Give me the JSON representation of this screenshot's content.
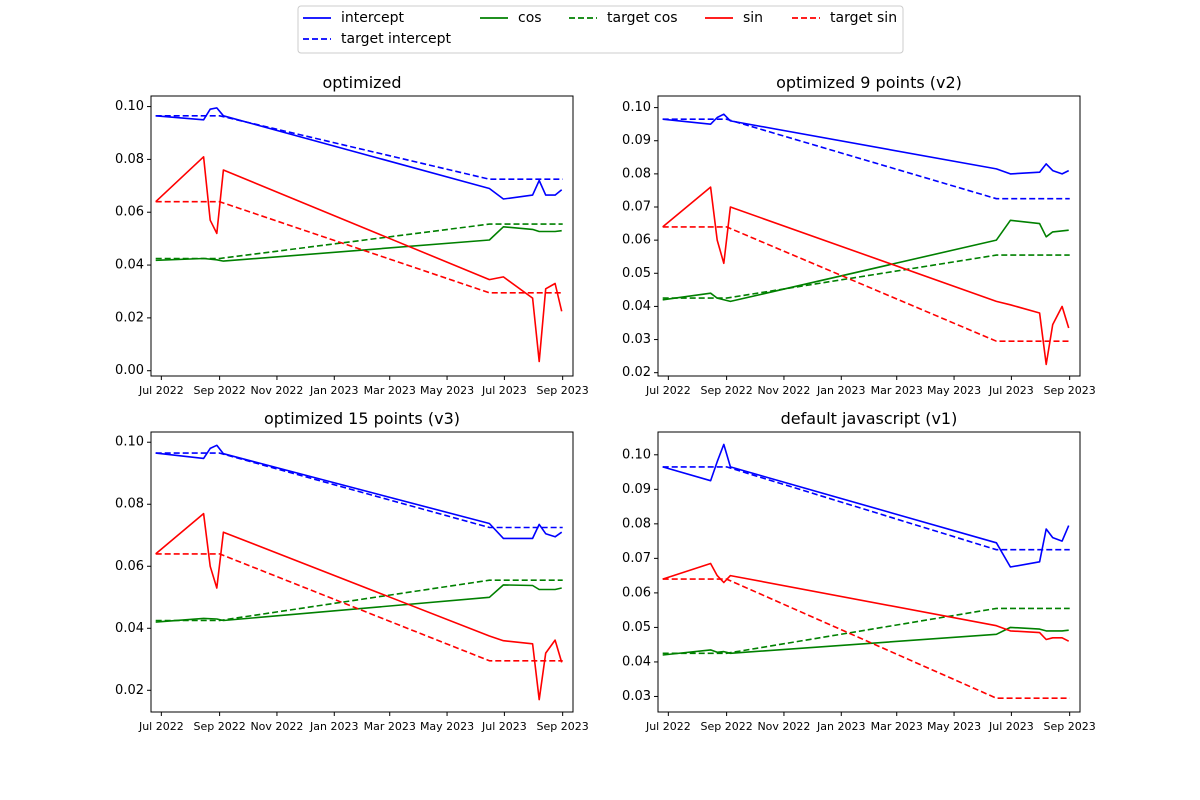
{
  "legend": {
    "entries": [
      {
        "key": "intercept",
        "label": "intercept",
        "color": "#0000ff",
        "dashed": false
      },
      {
        "key": "target_intercept",
        "label": "target intercept",
        "color": "#0000ff",
        "dashed": true
      },
      {
        "key": "cos",
        "label": "cos",
        "color": "#008000",
        "dashed": false
      },
      {
        "key": "target_cos",
        "label": "target cos",
        "color": "#008000",
        "dashed": true
      },
      {
        "key": "sin",
        "label": "sin",
        "color": "#ff0000",
        "dashed": false
      },
      {
        "key": "target_sin",
        "label": "target sin",
        "color": "#ff0000",
        "dashed": true
      }
    ]
  },
  "chart_data": [
    {
      "type": "line",
      "title": "optimized",
      "x_ticks": [
        "Jul 2022",
        "Sep 2022",
        "Nov 2022",
        "Jan 2023",
        "Mar 2023",
        "May 2023",
        "Jul 2023",
        "Sep 2023"
      ],
      "xlim": [
        "2022-06-20",
        "2023-09-12"
      ],
      "y_ticks": [
        "0.00",
        "0.02",
        "0.04",
        "0.06",
        "0.08",
        "0.10"
      ],
      "ylim": [
        -0.002,
        0.104
      ],
      "series": [
        {
          "key": "intercept",
          "points": [
            [
              "2022-06-25",
              0.0965
            ],
            [
              "2022-08-15",
              0.095
            ],
            [
              "2022-08-22",
              0.099
            ],
            [
              "2022-08-29",
              0.0995
            ],
            [
              "2022-09-05",
              0.0965
            ],
            [
              "2023-06-15",
              0.069
            ],
            [
              "2023-06-30",
              0.065
            ],
            [
              "2023-07-31",
              0.0665
            ],
            [
              "2023-08-07",
              0.072
            ],
            [
              "2023-08-14",
              0.0665
            ],
            [
              "2023-08-24",
              0.0665
            ],
            [
              "2023-08-31",
              0.0685
            ]
          ]
        },
        {
          "key": "target_intercept",
          "points": [
            [
              "2022-06-25",
              0.0965
            ],
            [
              "2022-09-01",
              0.0965
            ],
            [
              "2023-06-15",
              0.0725
            ],
            [
              "2023-09-01",
              0.0725
            ]
          ]
        },
        {
          "key": "cos",
          "points": [
            [
              "2022-06-25",
              0.0418
            ],
            [
              "2022-08-15",
              0.0425
            ],
            [
              "2022-08-29",
              0.042
            ],
            [
              "2022-09-05",
              0.0415
            ],
            [
              "2023-06-15",
              0.0495
            ],
            [
              "2023-06-30",
              0.0545
            ],
            [
              "2023-07-31",
              0.0535
            ],
            [
              "2023-08-07",
              0.0527
            ],
            [
              "2023-08-24",
              0.0527
            ],
            [
              "2023-08-31",
              0.053
            ]
          ]
        },
        {
          "key": "target_cos",
          "points": [
            [
              "2022-06-25",
              0.0425
            ],
            [
              "2022-09-01",
              0.0425
            ],
            [
              "2023-06-15",
              0.0555
            ],
            [
              "2023-09-01",
              0.0555
            ]
          ]
        },
        {
          "key": "sin",
          "points": [
            [
              "2022-06-25",
              0.064
            ],
            [
              "2022-08-15",
              0.081
            ],
            [
              "2022-08-22",
              0.057
            ],
            [
              "2022-08-29",
              0.052
            ],
            [
              "2022-09-05",
              0.076
            ],
            [
              "2023-06-15",
              0.0345
            ],
            [
              "2023-06-30",
              0.0355
            ],
            [
              "2023-07-31",
              0.0275
            ],
            [
              "2023-08-07",
              0.0035
            ],
            [
              "2023-08-14",
              0.031
            ],
            [
              "2023-08-24",
              0.033
            ],
            [
              "2023-08-31",
              0.0225
            ]
          ]
        },
        {
          "key": "target_sin",
          "points": [
            [
              "2022-06-25",
              0.064
            ],
            [
              "2022-09-01",
              0.064
            ],
            [
              "2023-06-15",
              0.0295
            ],
            [
              "2023-09-01",
              0.0295
            ]
          ]
        }
      ]
    },
    {
      "type": "line",
      "title": "optimized 9 points (v2)",
      "x_ticks": [
        "Jul 2022",
        "Sep 2022",
        "Nov 2022",
        "Jan 2023",
        "Mar 2023",
        "May 2023",
        "Jul 2023",
        "Sep 2023"
      ],
      "xlim": [
        "2022-06-20",
        "2023-09-12"
      ],
      "y_ticks": [
        "0.02",
        "0.03",
        "0.04",
        "0.05",
        "0.06",
        "0.07",
        "0.08",
        "0.09",
        "0.10"
      ],
      "ylim": [
        0.019,
        0.1035
      ],
      "series": [
        {
          "key": "intercept",
          "points": [
            [
              "2022-06-25",
              0.0965
            ],
            [
              "2022-08-15",
              0.095
            ],
            [
              "2022-08-22",
              0.097
            ],
            [
              "2022-08-29",
              0.098
            ],
            [
              "2022-09-05",
              0.096
            ],
            [
              "2023-06-15",
              0.0815
            ],
            [
              "2023-06-30",
              0.08
            ],
            [
              "2023-07-31",
              0.0805
            ],
            [
              "2023-08-07",
              0.083
            ],
            [
              "2023-08-14",
              0.081
            ],
            [
              "2023-08-24",
              0.08
            ],
            [
              "2023-08-31",
              0.081
            ]
          ]
        },
        {
          "key": "target_intercept",
          "points": [
            [
              "2022-06-25",
              0.0965
            ],
            [
              "2022-09-01",
              0.0965
            ],
            [
              "2023-06-15",
              0.0725
            ],
            [
              "2023-09-01",
              0.0725
            ]
          ]
        },
        {
          "key": "cos",
          "points": [
            [
              "2022-06-25",
              0.042
            ],
            [
              "2022-08-15",
              0.044
            ],
            [
              "2022-08-22",
              0.0425
            ],
            [
              "2022-09-05",
              0.0415
            ],
            [
              "2023-06-15",
              0.06
            ],
            [
              "2023-06-30",
              0.066
            ],
            [
              "2023-07-31",
              0.065
            ],
            [
              "2023-08-07",
              0.061
            ],
            [
              "2023-08-14",
              0.0625
            ],
            [
              "2023-08-31",
              0.063
            ]
          ]
        },
        {
          "key": "target_cos",
          "points": [
            [
              "2022-06-25",
              0.0425
            ],
            [
              "2022-09-01",
              0.0425
            ],
            [
              "2023-06-15",
              0.0555
            ],
            [
              "2023-09-01",
              0.0555
            ]
          ]
        },
        {
          "key": "sin",
          "points": [
            [
              "2022-06-25",
              0.064
            ],
            [
              "2022-08-15",
              0.076
            ],
            [
              "2022-08-22",
              0.06
            ],
            [
              "2022-08-29",
              0.053
            ],
            [
              "2022-09-05",
              0.07
            ],
            [
              "2023-06-15",
              0.0415
            ],
            [
              "2023-06-30",
              0.0405
            ],
            [
              "2023-07-31",
              0.038
            ],
            [
              "2023-08-07",
              0.0225
            ],
            [
              "2023-08-14",
              0.0345
            ],
            [
              "2023-08-24",
              0.04
            ],
            [
              "2023-08-31",
              0.0335
            ]
          ]
        },
        {
          "key": "target_sin",
          "points": [
            [
              "2022-06-25",
              0.064
            ],
            [
              "2022-09-01",
              0.064
            ],
            [
              "2023-06-15",
              0.0295
            ],
            [
              "2023-09-01",
              0.0295
            ]
          ]
        }
      ]
    },
    {
      "type": "line",
      "title": "optimized 15 points (v3)",
      "x_ticks": [
        "Jul 2022",
        "Sep 2022",
        "Nov 2022",
        "Jan 2023",
        "Mar 2023",
        "May 2023",
        "Jul 2023",
        "Sep 2023"
      ],
      "xlim": [
        "2022-06-20",
        "2023-09-12"
      ],
      "y_ticks": [
        "0.02",
        "0.04",
        "0.06",
        "0.08",
        "0.10"
      ],
      "ylim": [
        0.013,
        0.1033
      ],
      "series": [
        {
          "key": "intercept",
          "points": [
            [
              "2022-06-25",
              0.0965
            ],
            [
              "2022-08-15",
              0.0948
            ],
            [
              "2022-08-22",
              0.098
            ],
            [
              "2022-08-29",
              0.099
            ],
            [
              "2022-09-05",
              0.0963
            ],
            [
              "2023-06-15",
              0.0738
            ],
            [
              "2023-06-30",
              0.069
            ],
            [
              "2023-07-31",
              0.069
            ],
            [
              "2023-08-07",
              0.0735
            ],
            [
              "2023-08-14",
              0.0705
            ],
            [
              "2023-08-24",
              0.0695
            ],
            [
              "2023-08-31",
              0.071
            ]
          ]
        },
        {
          "key": "target_intercept",
          "points": [
            [
              "2022-06-25",
              0.0965
            ],
            [
              "2022-09-01",
              0.0965
            ],
            [
              "2023-06-15",
              0.0725
            ],
            [
              "2023-09-01",
              0.0725
            ]
          ]
        },
        {
          "key": "cos",
          "points": [
            [
              "2022-06-25",
              0.042
            ],
            [
              "2022-08-15",
              0.0432
            ],
            [
              "2022-08-29",
              0.043
            ],
            [
              "2022-09-05",
              0.0425
            ],
            [
              "2023-06-15",
              0.05
            ],
            [
              "2023-06-30",
              0.054
            ],
            [
              "2023-07-31",
              0.0538
            ],
            [
              "2023-08-07",
              0.0525
            ],
            [
              "2023-08-24",
              0.0525
            ],
            [
              "2023-08-31",
              0.053
            ]
          ]
        },
        {
          "key": "target_cos",
          "points": [
            [
              "2022-06-25",
              0.0425
            ],
            [
              "2022-09-01",
              0.0425
            ],
            [
              "2023-06-15",
              0.0555
            ],
            [
              "2023-09-01",
              0.0555
            ]
          ]
        },
        {
          "key": "sin",
          "points": [
            [
              "2022-06-25",
              0.064
            ],
            [
              "2022-08-15",
              0.077
            ],
            [
              "2022-08-22",
              0.06
            ],
            [
              "2022-08-29",
              0.053
            ],
            [
              "2022-09-05",
              0.071
            ],
            [
              "2023-06-15",
              0.0375
            ],
            [
              "2023-06-30",
              0.036
            ],
            [
              "2023-07-31",
              0.035
            ],
            [
              "2023-08-07",
              0.017
            ],
            [
              "2023-08-14",
              0.032
            ],
            [
              "2023-08-24",
              0.0362
            ],
            [
              "2023-08-31",
              0.029
            ]
          ]
        },
        {
          "key": "target_sin",
          "points": [
            [
              "2022-06-25",
              0.064
            ],
            [
              "2022-09-01",
              0.064
            ],
            [
              "2023-06-15",
              0.0295
            ],
            [
              "2023-09-01",
              0.0295
            ]
          ]
        }
      ]
    },
    {
      "type": "line",
      "title": "default javascript (v1)",
      "x_ticks": [
        "Jul 2022",
        "Sep 2022",
        "Nov 2022",
        "Jan 2023",
        "Mar 2023",
        "May 2023",
        "Jul 2023",
        "Sep 2023"
      ],
      "xlim": [
        "2022-06-20",
        "2023-09-12"
      ],
      "y_ticks": [
        "0.03",
        "0.04",
        "0.05",
        "0.06",
        "0.07",
        "0.08",
        "0.09",
        "0.10"
      ],
      "ylim": [
        0.0255,
        0.1066
      ],
      "series": [
        {
          "key": "intercept",
          "points": [
            [
              "2022-06-25",
              0.0965
            ],
            [
              "2022-08-15",
              0.0925
            ],
            [
              "2022-08-22",
              0.098
            ],
            [
              "2022-08-29",
              0.103
            ],
            [
              "2022-09-05",
              0.0965
            ],
            [
              "2023-06-15",
              0.0745
            ],
            [
              "2023-06-30",
              0.0675
            ],
            [
              "2023-07-31",
              0.069
            ],
            [
              "2023-08-07",
              0.0785
            ],
            [
              "2023-08-14",
              0.076
            ],
            [
              "2023-08-24",
              0.075
            ],
            [
              "2023-08-31",
              0.0795
            ]
          ]
        },
        {
          "key": "target_intercept",
          "points": [
            [
              "2022-06-25",
              0.0965
            ],
            [
              "2022-09-01",
              0.0965
            ],
            [
              "2023-06-15",
              0.0725
            ],
            [
              "2023-09-01",
              0.0725
            ]
          ]
        },
        {
          "key": "cos",
          "points": [
            [
              "2022-06-25",
              0.042
            ],
            [
              "2022-08-15",
              0.0435
            ],
            [
              "2022-08-22",
              0.0428
            ],
            [
              "2022-08-29",
              0.043
            ],
            [
              "2022-09-05",
              0.0425
            ],
            [
              "2023-06-15",
              0.048
            ],
            [
              "2023-06-30",
              0.05
            ],
            [
              "2023-07-31",
              0.0495
            ],
            [
              "2023-08-07",
              0.049
            ],
            [
              "2023-08-24",
              0.049
            ],
            [
              "2023-08-31",
              0.0492
            ]
          ]
        },
        {
          "key": "target_cos",
          "points": [
            [
              "2022-06-25",
              0.0425
            ],
            [
              "2022-09-01",
              0.0425
            ],
            [
              "2023-06-15",
              0.0555
            ],
            [
              "2023-09-01",
              0.0555
            ]
          ]
        },
        {
          "key": "sin",
          "points": [
            [
              "2022-06-25",
              0.064
            ],
            [
              "2022-08-15",
              0.0685
            ],
            [
              "2022-08-22",
              0.065
            ],
            [
              "2022-08-29",
              0.063
            ],
            [
              "2022-09-05",
              0.065
            ],
            [
              "2023-06-15",
              0.0505
            ],
            [
              "2023-06-30",
              0.049
            ],
            [
              "2023-07-31",
              0.0485
            ],
            [
              "2023-08-07",
              0.0465
            ],
            [
              "2023-08-14",
              0.047
            ],
            [
              "2023-08-24",
              0.047
            ],
            [
              "2023-08-31",
              0.046
            ]
          ]
        },
        {
          "key": "target_sin",
          "points": [
            [
              "2022-06-25",
              0.064
            ],
            [
              "2022-09-01",
              0.064
            ],
            [
              "2023-06-15",
              0.0295
            ],
            [
              "2023-09-01",
              0.0295
            ]
          ]
        }
      ]
    }
  ]
}
